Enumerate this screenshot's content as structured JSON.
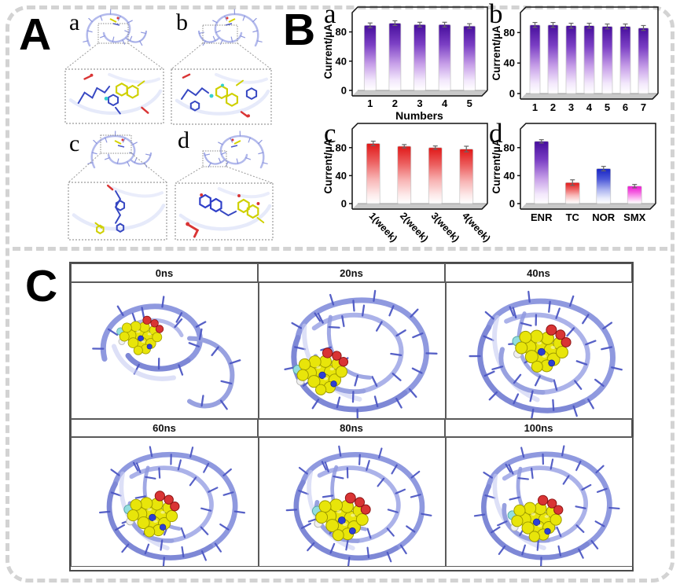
{
  "panels": {
    "A": {
      "label": "A",
      "subpanels": [
        "a",
        "b",
        "c",
        "d"
      ]
    },
    "B": {
      "label": "B"
    },
    "C": {
      "label": "C",
      "frames": [
        "0ns",
        "20ns",
        "40ns",
        "60ns",
        "80ns",
        "100ns"
      ]
    }
  },
  "colors": {
    "accent_purple": "#450d9b",
    "accent_red": "#e01717",
    "accent_blue": "#1723c4",
    "accent_magenta": "#ee13d2",
    "ribbon_blue": "#aab4e6",
    "ligand_yellow": "#e8e50a",
    "oxygen_red": "#d93434",
    "nitrogen_blue": "#2e3fd4",
    "floor_gray": "#c9c9c9",
    "dashed_border_gray": "#d3d3d3"
  },
  "chart_data": [
    {
      "type": "bar",
      "panel_label": "a",
      "categories": [
        "1",
        "2",
        "3",
        "4",
        "5"
      ],
      "values": [
        89,
        92,
        90,
        90,
        88
      ],
      "errors": [
        2,
        2,
        2,
        2,
        2
      ],
      "color": "purple",
      "xlabel": "Numbers",
      "ylabel": "Current/µA",
      "yticks": [
        0,
        40,
        80
      ],
      "ylim": [
        0,
        100
      ]
    },
    {
      "type": "bar",
      "panel_label": "b",
      "categories": [
        "1",
        "2",
        "3",
        "4",
        "5",
        "6",
        "7"
      ],
      "values": [
        90,
        90,
        89,
        89,
        88,
        88,
        86
      ],
      "errors": [
        2,
        2,
        2,
        2,
        2,
        2,
        2
      ],
      "color": "purple",
      "xlabel": "",
      "ylabel": "Current/µA",
      "yticks": [
        0,
        40,
        80
      ],
      "ylim": [
        0,
        100
      ]
    },
    {
      "type": "bar",
      "panel_label": "c",
      "categories": [
        "1(week)",
        "2(week)",
        "3(week)",
        "4(week)"
      ],
      "values": [
        86,
        82,
        80,
        78
      ],
      "errors": [
        2,
        1.5,
        1.5,
        2.5
      ],
      "color": "red",
      "rotated_labels": true,
      "xlabel": "",
      "ylabel": "Current/µA",
      "yticks": [
        0,
        40,
        80
      ],
      "ylim": [
        0,
        100
      ]
    },
    {
      "type": "bar",
      "panel_label": "d",
      "categories": [
        "ENR",
        "TC",
        "NOR",
        "SMX"
      ],
      "values": [
        89,
        30,
        50,
        25
      ],
      "errors": [
        1.5,
        2.5,
        2,
        1.5
      ],
      "colors": [
        "purple",
        "red",
        "blue",
        "magenta"
      ],
      "xlabel": "",
      "ylabel": "Current/µA",
      "yticks": [
        0,
        40,
        80
      ],
      "ylim": [
        0,
        100
      ]
    }
  ]
}
